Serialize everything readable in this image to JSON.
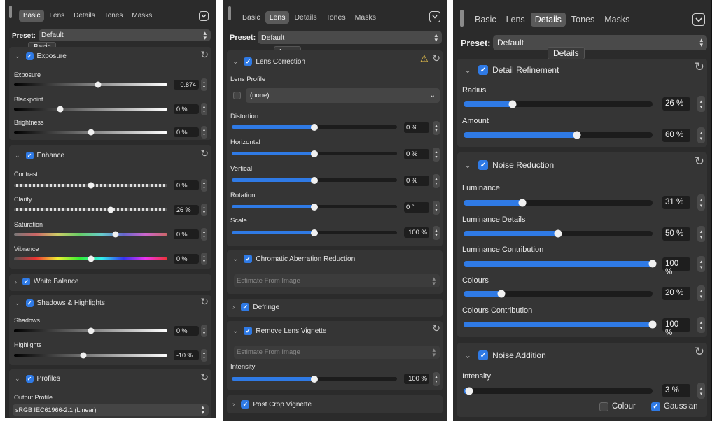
{
  "panel1": {
    "tabs": [
      "Basic",
      "Lens",
      "Details",
      "Tones",
      "Masks"
    ],
    "active_tab": "Basic",
    "preset_label": "Preset:",
    "preset_value": "Default",
    "tooltip": "Basic",
    "exposure": {
      "title": "Exposure",
      "rows": [
        {
          "label": "Exposure",
          "value": "0.874"
        },
        {
          "label": "Blackpoint",
          "value": "0 %"
        },
        {
          "label": "Brightness",
          "value": "0 %"
        }
      ]
    },
    "enhance": {
      "title": "Enhance",
      "rows": [
        {
          "label": "Contrast",
          "value": "0 %"
        },
        {
          "label": "Clarity",
          "value": "26 %"
        },
        {
          "label": "Saturation",
          "value": "0 %"
        },
        {
          "label": "Vibrance",
          "value": "0 %"
        }
      ]
    },
    "white_balance": {
      "title": "White Balance"
    },
    "shadows": {
      "title": "Shadows & Highlights",
      "rows": [
        {
          "label": "Shadows",
          "value": "0 %"
        },
        {
          "label": "Highlights",
          "value": "-10 %"
        }
      ]
    },
    "profiles": {
      "title": "Profiles",
      "output_label": "Output Profile",
      "output_value": "sRGB IEC61966-2.1 (Linear)"
    }
  },
  "panel2": {
    "tabs": [
      "Basic",
      "Lens",
      "Details",
      "Tones",
      "Masks"
    ],
    "active_tab": "Lens",
    "preset_label": "Preset:",
    "preset_value": "Default",
    "tooltip": "Lens",
    "lens_correction": {
      "title": "Lens Correction",
      "profile_label": "Lens Profile",
      "profile_value": "(none)",
      "rows": [
        {
          "label": "Distortion",
          "value": "0 %"
        },
        {
          "label": "Horizontal",
          "value": "0 %"
        },
        {
          "label": "Vertical",
          "value": "0 %"
        },
        {
          "label": "Rotation",
          "value": "0 °"
        },
        {
          "label": "Scale",
          "value": "100 %"
        }
      ]
    },
    "chromatic": {
      "title": "Chromatic Aberration Reduction",
      "dropdown": "Estimate From Image"
    },
    "defringe": {
      "title": "Defringe"
    },
    "vignette": {
      "title": "Remove Lens Vignette",
      "dropdown": "Estimate From Image",
      "intensity_label": "Intensity",
      "intensity_value": "100 %"
    },
    "post_crop": {
      "title": "Post Crop Vignette"
    }
  },
  "panel3": {
    "tabs": [
      "Basic",
      "Lens",
      "Details",
      "Tones",
      "Masks"
    ],
    "active_tab": "Details",
    "preset_label": "Preset:",
    "preset_value": "Default",
    "tooltip": "Details",
    "detail": {
      "title": "Detail Refinement",
      "rows": [
        {
          "label": "Radius",
          "value": "26 %",
          "level": 0.26
        },
        {
          "label": "Amount",
          "value": "60 %",
          "level": 0.6
        }
      ]
    },
    "noise_reduction": {
      "title": "Noise Reduction",
      "rows": [
        {
          "label": "Luminance",
          "value": "31 %",
          "level": 0.31
        },
        {
          "label": "Luminance Details",
          "value": "50 %",
          "level": 0.5
        },
        {
          "label": "Luminance Contribution",
          "value": "100 %",
          "level": 1.0
        },
        {
          "label": "Colours",
          "value": "20 %",
          "level": 0.2
        },
        {
          "label": "Colours Contribution",
          "value": "100 %",
          "level": 1.0
        }
      ]
    },
    "noise_addition": {
      "title": "Noise Addition",
      "intensity_label": "Intensity",
      "intensity_value": "3 %",
      "intensity_level": 0.03,
      "colour_label": "Colour",
      "gaussian_label": "Gaussian"
    }
  },
  "levels": {
    "exposure": 0.55,
    "blackpoint": 0.3,
    "brightness": 0.5,
    "contrast": 0.5,
    "clarity": 0.63,
    "saturation": 0.66,
    "vibrance": 0.5,
    "shadows": 0.5,
    "highlights": 0.45,
    "lens": 0.5,
    "vignette_intensity": 0.5
  },
  "colors": {
    "accent": "#2f7ae5",
    "panel_bg": "#2b2b2b",
    "group_bg": "#353535",
    "warning": "#f2c94c"
  }
}
